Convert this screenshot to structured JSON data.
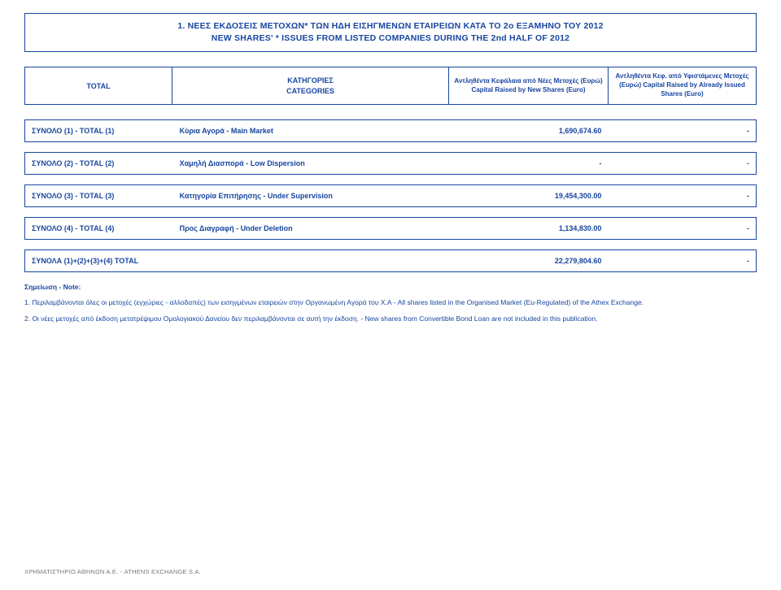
{
  "title": {
    "line1": "1. ΝΕΕΣ ΕΚΔΟΣΕΙΣ ΜΕΤΟΧΩΝ* ΤΩΝ ΗΔΗ ΕΙΣΗΓΜΕΝΩΝ ΕΤΑΙΡΕΙΩΝ ΚΑΤΑ ΤΟ 2ο ΕΞΑΜΗΝΟ ΤΟΥ 2012",
    "line2": "NEW SHARES' * ISSUES FROM LISTED COMPANIES DURING THE 2nd HALF OF 2012"
  },
  "header": {
    "c1": {
      "gr": "TOTAL",
      "en": ""
    },
    "c2": {
      "gr": "ΚΑΤΗΓΟΡΙΕΣ",
      "en": "CATEGORIES"
    },
    "c3": {
      "gr": "Αντληθέντα Κεφάλαια από Νέες Μετοχές (Ευρώ)",
      "en": "Capital Raised by New Shares (Euro)"
    },
    "c4": {
      "gr": "Αντληθέντα Κεφ. από Υφιστάμενες Μετοχές (Ευρώ) Capital Raised by Already Issued Shares (Euro)",
      "en": ""
    }
  },
  "rows": [
    {
      "label": "ΣΥΝΟΛΟ (1) - TOTAL (1)",
      "category": "Κύρια Αγορά - Main Market",
      "val3": "1,690,674.60",
      "val4": "-"
    },
    {
      "label": "ΣΥΝΟΛΟ (2) - TOTAL (2)",
      "category": "Χαμηλή Διασπορά - Low Dispersion",
      "val3": "-",
      "val4": "-"
    },
    {
      "label": "ΣΥΝΟΛΟ (3) - TOTAL (3)",
      "category": "Κατηγορία Επιτήρησης - Under Supervision",
      "val3": "19,454,300.00",
      "val4": "-"
    },
    {
      "label": "ΣΥΝΟΛΟ (4) - TOTAL (4)",
      "category": "Προς Διαγραφή - Under Deletion",
      "val3": "1,134,830.00",
      "val4": "-"
    },
    {
      "label": "ΣΥΝΟΛΑ (1)+(2)+(3)+(4) TOTAL",
      "category": "",
      "val3": "22,279,804.60",
      "val4": "-"
    }
  ],
  "notes": {
    "head": "Σημείωση - Note:",
    "n1": "1. Περιλαμβάνονται όλες οι μετοχές (εγχώριες - αλλοδαπές) των εισηγμένων εταιρειών στην Οργανωμένη Αγορά του Χ.Α - All shares listed in the Organised Market (Eu-Regulated) of the Athex Exchange.",
    "n2": "2. Οι νέες μετοχές από έκδοση μετατρέψιμου Ομολογιακού Δανείου δεν περιλαμβάνονται σε αυτή την έκδοση. - New shares from Convertible Bond Loan are not included in this publication."
  },
  "footer": "ΧΡΗΜΑΤΙΣΤΗΡΙΟ ΑΘΗΝΩΝ Α.Ε. - ATHENS EXCHANGE S.A.",
  "colors": {
    "primary": "#1846a0",
    "footer": "#777777",
    "background": "#ffffff"
  }
}
